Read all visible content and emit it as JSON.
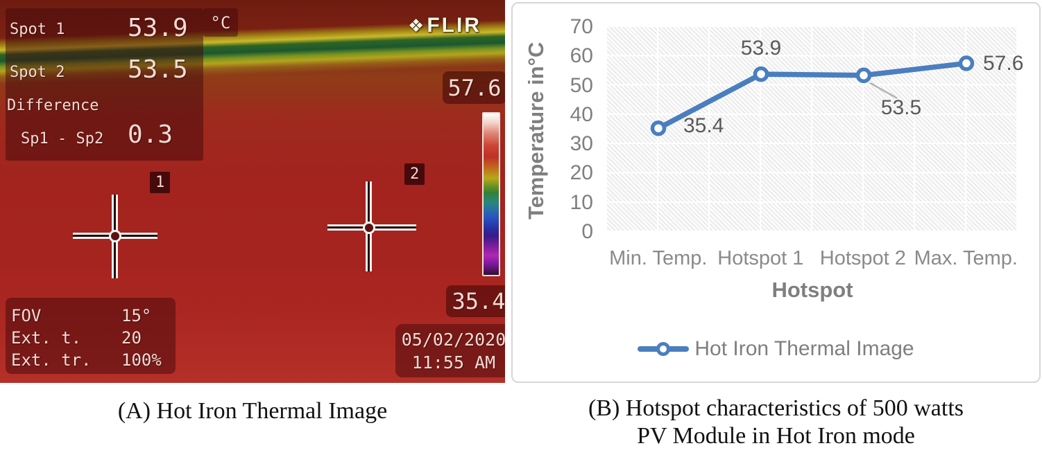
{
  "captions": {
    "a": "(A) Hot Iron Thermal Image",
    "b_line1": "(B) Hotspot characteristics of 500 watts",
    "b_line2": "PV Module in Hot Iron mode"
  },
  "thermal": {
    "brand": "FLIR",
    "unit_label": "°C",
    "readouts": {
      "spot1_label": "Spot 1",
      "spot1_value": "53.9",
      "spot2_label": "Spot 2",
      "spot2_value": "53.5",
      "difference_label": "Difference",
      "difference_formula": "Sp1 - Sp2",
      "difference_value": "0.3"
    },
    "markers": {
      "marker1": "1",
      "marker2": "2"
    },
    "scale": {
      "max": "57.6",
      "min": "35.4"
    },
    "camera_info": {
      "fov_label": "FOV",
      "fov_value": "15°",
      "ext_t_label": "Ext. t.",
      "ext_t_value": "20",
      "ext_tr_label": "Ext. tr.",
      "ext_tr_value": "100%"
    },
    "timestamp": {
      "date": "05/02/2020",
      "time": "11:55 AM"
    }
  },
  "chart_data": {
    "type": "line",
    "categories": [
      "Min. Temp.",
      "Hotspot 1",
      "Hotspot 2",
      "Max. Temp."
    ],
    "series": [
      {
        "name": "Hot Iron Thermal Image",
        "values": [
          35.4,
          53.9,
          53.5,
          57.6
        ]
      }
    ],
    "data_labels": [
      "35.4",
      "53.9",
      "53.5",
      "57.6"
    ],
    "title": "",
    "xlabel": "Hotspot",
    "ylabel": "Temperature in°C",
    "ylim": [
      0,
      70
    ],
    "yticks": [
      0,
      10,
      20,
      30,
      40,
      50,
      60,
      70
    ],
    "grid": true,
    "grid_pattern": "diagonal-hatch",
    "legend_position": "bottom",
    "line_color": "#4a7ebf",
    "marker_fill": "#ffffff",
    "data_label_color": "#595959",
    "axis_text_color": "#7f7f7f",
    "leader_line_color": "#b3b3b3"
  }
}
